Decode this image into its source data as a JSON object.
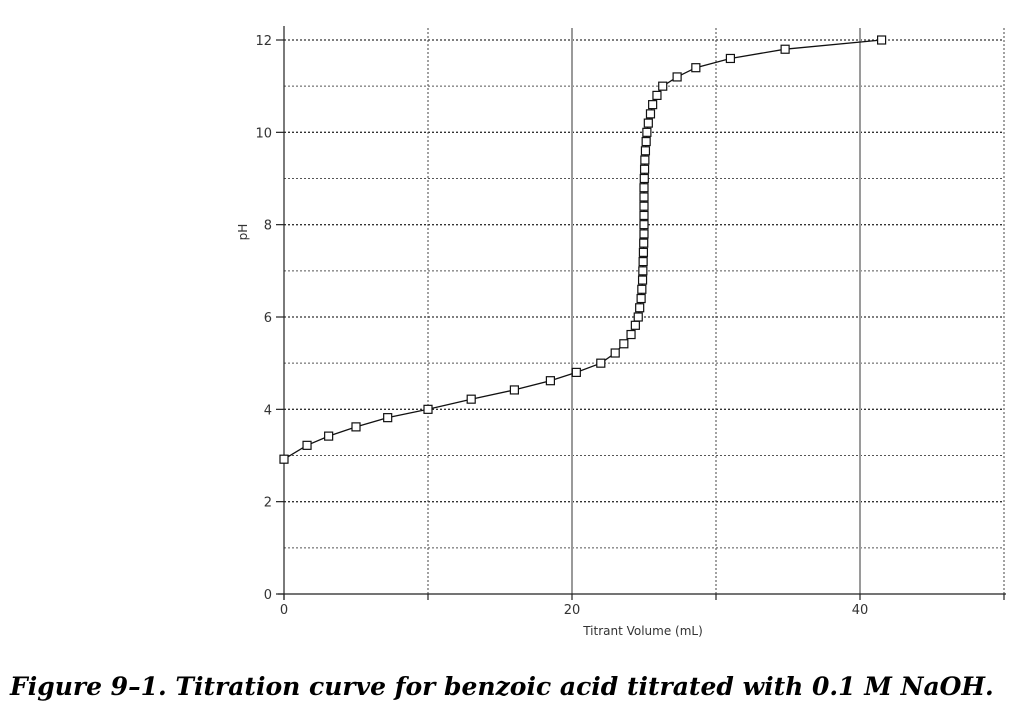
{
  "caption": "Figure 9–1. Titration curve for benzoic acid titrated with 0.1 M NaOH.",
  "chart_data": {
    "type": "line",
    "xlabel": "Titrant Volume (mL)",
    "ylabel": "pH",
    "xlim": [
      0,
      50
    ],
    "ylim": [
      0,
      12
    ],
    "xticks": [
      0,
      20,
      40
    ],
    "yticks": [
      0,
      2,
      4,
      6,
      8,
      10,
      12
    ],
    "grid": true,
    "marker": "square",
    "series": [
      {
        "x": [
          0,
          1.6,
          3.1,
          5.0,
          7.2,
          10.0,
          13.0,
          16.0,
          18.5,
          20.3,
          22.0,
          23.0,
          23.6,
          24.1,
          24.4,
          24.6,
          24.7,
          24.8,
          24.85,
          24.9,
          24.92,
          24.94,
          24.96,
          24.98,
          25.0,
          25.0,
          25.0,
          25.0,
          25.0,
          25.0,
          25.02,
          25.04,
          25.06,
          25.1,
          25.15,
          25.2,
          25.3,
          25.45,
          25.6,
          25.9,
          26.3,
          27.3,
          28.6,
          31.0,
          34.8,
          41.5
        ],
        "y": [
          2.92,
          3.22,
          3.42,
          3.62,
          3.82,
          4.0,
          4.22,
          4.42,
          4.62,
          4.8,
          5.0,
          5.22,
          5.42,
          5.62,
          5.82,
          6.0,
          6.2,
          6.4,
          6.6,
          6.8,
          7.0,
          7.2,
          7.4,
          7.6,
          7.8,
          8.0,
          8.2,
          8.4,
          8.6,
          8.8,
          9.0,
          9.2,
          9.4,
          9.6,
          9.8,
          10.0,
          10.2,
          10.4,
          10.6,
          10.8,
          11.0,
          11.2,
          11.4,
          11.6,
          11.8,
          12.0
        ]
      }
    ]
  }
}
